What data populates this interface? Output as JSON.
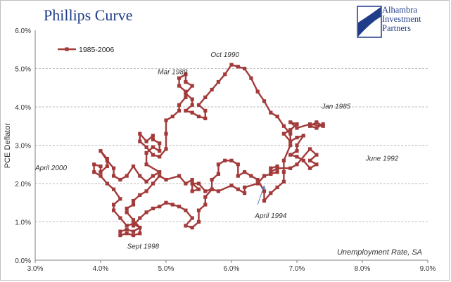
{
  "chart_data": {
    "type": "line",
    "title": "Phillips Curve",
    "xlabel": "Unemployment Rate, SA",
    "ylabel": "PCE Deflator",
    "xlim": [
      3.0,
      9.0
    ],
    "ylim": [
      0.0,
      6.0
    ],
    "x_ticks": [
      "3.0%",
      "4.0%",
      "5.0%",
      "6.0%",
      "7.0%",
      "8.0%",
      "9.0%"
    ],
    "y_ticks": [
      "0.0%",
      "1.0%",
      "2.0%",
      "3.0%",
      "4.0%",
      "5.0%",
      "6.0%"
    ],
    "grid": "horizontal-dashed",
    "legend": "top-left",
    "color": "#a33a3a",
    "series": [
      {
        "name": "1985-2006",
        "points": [
          [
            7.4,
            3.55
          ],
          [
            7.3,
            3.45
          ],
          [
            7.2,
            3.5
          ],
          [
            7.3,
            3.6
          ],
          [
            7.4,
            3.5
          ],
          [
            7.2,
            3.55
          ],
          [
            7.0,
            3.45
          ],
          [
            6.9,
            3.6
          ],
          [
            7.0,
            3.55
          ],
          [
            6.9,
            3.4
          ],
          [
            6.8,
            3.3
          ],
          [
            6.9,
            3.1
          ],
          [
            7.0,
            3.2
          ],
          [
            7.1,
            3.25
          ],
          [
            7.0,
            3.0
          ],
          [
            7.0,
            2.85
          ],
          [
            6.9,
            2.75
          ],
          [
            7.0,
            2.7
          ],
          [
            7.1,
            2.6
          ],
          [
            7.2,
            2.4
          ],
          [
            7.3,
            2.5
          ],
          [
            7.2,
            2.6
          ],
          [
            7.3,
            2.75
          ],
          [
            7.2,
            2.9
          ],
          [
            7.0,
            2.5
          ],
          [
            6.9,
            2.4
          ],
          [
            6.7,
            2.4
          ],
          [
            6.6,
            2.3
          ],
          [
            6.6,
            2.4
          ],
          [
            6.7,
            2.45
          ],
          [
            6.7,
            2.3
          ],
          [
            6.6,
            2.25
          ],
          [
            6.5,
            2.2
          ],
          [
            6.4,
            2.0
          ],
          [
            6.2,
            1.9
          ],
          [
            6.2,
            1.75
          ],
          [
            6.1,
            1.85
          ],
          [
            6.0,
            1.95
          ],
          [
            5.8,
            1.8
          ],
          [
            5.7,
            1.85
          ],
          [
            5.6,
            1.8
          ],
          [
            5.5,
            2.0
          ],
          [
            5.4,
            2.0
          ],
          [
            5.5,
            1.85
          ],
          [
            5.4,
            1.8
          ],
          [
            5.4,
            2.1
          ],
          [
            5.3,
            2.0
          ],
          [
            5.2,
            2.2
          ],
          [
            5.0,
            2.1
          ],
          [
            4.9,
            2.2
          ],
          [
            4.8,
            2.0
          ],
          [
            4.7,
            1.8
          ],
          [
            4.6,
            1.7
          ],
          [
            4.5,
            1.55
          ],
          [
            4.5,
            1.45
          ],
          [
            4.4,
            1.35
          ],
          [
            4.4,
            1.25
          ],
          [
            4.5,
            1.05
          ],
          [
            4.6,
            0.85
          ],
          [
            4.5,
            0.75
          ],
          [
            4.4,
            0.8
          ],
          [
            4.3,
            0.75
          ],
          [
            4.3,
            0.65
          ],
          [
            4.4,
            0.7
          ],
          [
            4.5,
            0.65
          ],
          [
            4.6,
            0.7
          ],
          [
            4.6,
            0.85
          ],
          [
            4.5,
            0.95
          ],
          [
            4.4,
            0.9
          ],
          [
            4.3,
            1.1
          ],
          [
            4.2,
            1.3
          ],
          [
            4.2,
            1.45
          ],
          [
            4.3,
            1.6
          ],
          [
            4.2,
            1.85
          ],
          [
            4.1,
            2.0
          ],
          [
            4.0,
            2.2
          ],
          [
            3.9,
            2.3
          ],
          [
            3.9,
            2.5
          ],
          [
            4.0,
            2.45
          ],
          [
            4.0,
            2.3
          ],
          [
            4.1,
            2.45
          ],
          [
            4.1,
            2.65
          ],
          [
            4.0,
            2.85
          ],
          [
            4.1,
            2.6
          ],
          [
            4.2,
            2.4
          ],
          [
            4.2,
            2.2
          ],
          [
            4.3,
            2.1
          ],
          [
            4.4,
            2.2
          ],
          [
            4.5,
            2.45
          ],
          [
            4.6,
            2.2
          ],
          [
            4.7,
            2.05
          ],
          [
            4.8,
            2.2
          ],
          [
            4.9,
            2.3
          ],
          [
            4.7,
            2.5
          ],
          [
            4.7,
            2.8
          ],
          [
            4.8,
            2.95
          ],
          [
            4.9,
            2.85
          ],
          [
            4.9,
            3.05
          ],
          [
            4.8,
            3.15
          ],
          [
            4.8,
            3.25
          ],
          [
            4.7,
            3.1
          ],
          [
            4.6,
            3.3
          ],
          [
            4.6,
            3.1
          ],
          [
            4.7,
            2.95
          ],
          [
            4.8,
            2.75
          ],
          [
            4.9,
            2.7
          ],
          [
            5.0,
            2.9
          ],
          [
            5.0,
            3.3
          ],
          [
            5.0,
            3.65
          ],
          [
            5.1,
            3.75
          ],
          [
            5.2,
            3.9
          ],
          [
            5.2,
            4.05
          ],
          [
            5.3,
            4.25
          ],
          [
            5.3,
            4.4
          ],
          [
            5.2,
            4.55
          ],
          [
            5.2,
            4.75
          ],
          [
            5.3,
            4.85
          ],
          [
            5.3,
            4.65
          ],
          [
            5.4,
            4.55
          ],
          [
            5.3,
            4.35
          ],
          [
            5.4,
            4.2
          ],
          [
            5.4,
            4.05
          ],
          [
            5.3,
            3.9
          ],
          [
            5.4,
            3.85
          ],
          [
            5.5,
            3.75
          ],
          [
            5.6,
            3.7
          ],
          [
            5.6,
            3.9
          ],
          [
            5.5,
            4.05
          ],
          [
            5.6,
            4.25
          ],
          [
            5.7,
            4.45
          ],
          [
            5.8,
            4.65
          ],
          [
            5.9,
            4.85
          ],
          [
            6.0,
            5.1
          ],
          [
            6.1,
            5.05
          ],
          [
            6.2,
            5.0
          ],
          [
            6.3,
            4.75
          ],
          [
            6.4,
            4.4
          ],
          [
            6.5,
            4.15
          ],
          [
            6.6,
            3.85
          ],
          [
            6.7,
            3.75
          ],
          [
            6.8,
            3.5
          ],
          [
            6.9,
            3.3
          ],
          [
            6.9,
            3.0
          ],
          [
            6.8,
            2.6
          ],
          [
            6.8,
            2.3
          ],
          [
            6.8,
            2.05
          ],
          [
            6.7,
            1.9
          ],
          [
            6.6,
            1.75
          ],
          [
            6.5,
            1.55
          ],
          [
            6.5,
            1.8
          ],
          [
            6.4,
            2.1
          ],
          [
            6.3,
            2.2
          ],
          [
            6.2,
            2.3
          ],
          [
            6.1,
            2.2
          ],
          [
            6.1,
            2.5
          ],
          [
            6.0,
            2.6
          ],
          [
            5.9,
            2.6
          ],
          [
            5.8,
            2.5
          ],
          [
            5.8,
            2.25
          ],
          [
            5.7,
            2.1
          ],
          [
            5.7,
            1.85
          ],
          [
            5.6,
            1.65
          ],
          [
            5.6,
            1.45
          ],
          [
            5.5,
            1.3
          ],
          [
            5.5,
            1.0
          ],
          [
            5.4,
            0.85
          ],
          [
            5.3,
            0.9
          ],
          [
            5.4,
            1.1
          ],
          [
            5.3,
            1.3
          ],
          [
            5.2,
            1.4
          ],
          [
            5.1,
            1.45
          ],
          [
            5.0,
            1.5
          ],
          [
            4.9,
            1.4
          ],
          [
            4.8,
            1.35
          ],
          [
            4.7,
            1.25
          ],
          [
            4.6,
            1.1
          ],
          [
            4.5,
            0.9
          ]
        ]
      }
    ],
    "annotations": [
      {
        "text": "Oct 1990",
        "x": 5.9,
        "y": 5.3
      },
      {
        "text": "Mar 1989",
        "x": 5.1,
        "y": 4.85
      },
      {
        "text": "Jan 1985",
        "x": 7.6,
        "y": 3.95
      },
      {
        "text": "April 2000",
        "x": 3.0,
        "y": 2.35
      },
      {
        "text": "June 1992",
        "x": 8.05,
        "y": 2.6
      },
      {
        "text": "April 1994",
        "x": 6.6,
        "y": 1.1
      },
      {
        "text": "Sept 1998",
        "x": 4.65,
        "y": 0.3
      }
    ]
  },
  "logo": {
    "line1": "Alhambra",
    "line2": "Investment",
    "line3": "Partners"
  }
}
